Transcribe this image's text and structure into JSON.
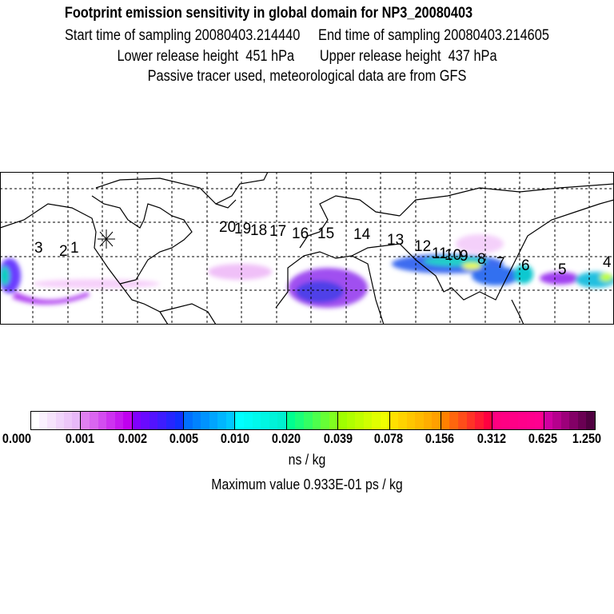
{
  "header": {
    "title": "Footprint emission sensitivity in global domain for NP3_20080403",
    "sampling_line": "Start time of sampling 20080403.214440     End time of sampling 20080403.214605",
    "release_line": "Lower release height  451 hPa       Upper release height  437 hPa",
    "tracer_line": "Passive tracer used, meteorological data are from GFS"
  },
  "map": {
    "release_marker_icon": "asterisk-star",
    "trajectory_labels": [
      "1",
      "2",
      "3",
      "4",
      "5",
      "6",
      "7",
      "8",
      "9",
      "10",
      "11",
      "12",
      "13",
      "14",
      "15",
      "16",
      "17",
      "18",
      "19",
      "20"
    ]
  },
  "colorbar": {
    "tick_labels": [
      "0.000",
      "0.001",
      "0.002",
      "0.005",
      "0.010",
      "0.020",
      "0.039",
      "0.078",
      "0.156",
      "0.312",
      "0.625",
      "1.250"
    ],
    "segment_colors": [
      [
        "#ffffff",
        "#e8b8f8"
      ],
      [
        "#e080f0",
        "#c000f0"
      ],
      [
        "#8000ff",
        "#1030ff"
      ],
      [
        "#0070ff",
        "#00c8ff"
      ],
      [
        "#00ffff",
        "#00f0d0"
      ],
      [
        "#00ff90",
        "#80ff20"
      ],
      [
        "#a0ff00",
        "#f0ff00"
      ],
      [
        "#ffe000",
        "#ffa000"
      ],
      [
        "#ff8000",
        "#ff0040"
      ],
      [
        "#ff0080",
        "#ff0090"
      ],
      [
        "#d000a0",
        "#500040"
      ]
    ],
    "unit": "ns / kg",
    "max_value": "Maximum value  0.933E-01 ps / kg"
  }
}
